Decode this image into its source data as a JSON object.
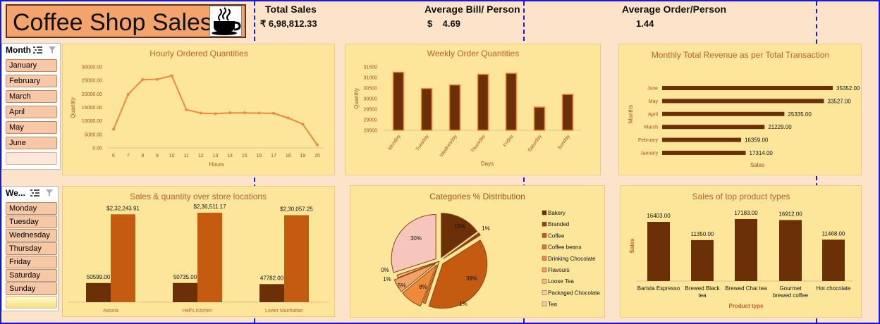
{
  "header": {
    "title": "Coffee Shop Sales",
    "kpis": [
      {
        "label": "Total Sales",
        "value": "₹ 6,98,812.33"
      },
      {
        "label": "Average Bill/ Person",
        "value": "$    4.69"
      },
      {
        "label": "Average Order/Person",
        "value": "1.44"
      }
    ]
  },
  "slicers": {
    "month": {
      "header": "Month",
      "items": [
        "January",
        "February",
        "March",
        "April",
        "May",
        "June"
      ]
    },
    "weekday": {
      "header": "We...",
      "items": [
        "Monday",
        "Tuesday",
        "Wednesday",
        "Thursday",
        "Friday",
        "Saturday",
        "Sunday"
      ]
    }
  },
  "chart_data": [
    {
      "id": "hourly",
      "type": "line",
      "title": "Hourly Ordered Quantities",
      "xlabel": "Hours",
      "ylabel": "Quantity",
      "x": [
        "6",
        "7",
        "8",
        "9",
        "10",
        "11",
        "12",
        "13",
        "14",
        "15",
        "16",
        "17",
        "18",
        "19",
        "20"
      ],
      "values": [
        6900,
        19800,
        25300,
        25400,
        26700,
        14200,
        12900,
        12700,
        13000,
        13000,
        12900,
        12800,
        11100,
        8800,
        1100
      ],
      "yticks": [
        "0.00",
        "5000.00",
        "10000.00",
        "15000.00",
        "20000.00",
        "25000.00",
        "30000.00"
      ],
      "ylim": [
        0,
        30000
      ],
      "color": "#ee8a3c"
    },
    {
      "id": "weekly",
      "type": "bar",
      "title": "Weekly Order Quantities",
      "xlabel": "Days",
      "ylabel": "Quantity",
      "categories": [
        "Monday",
        "Tuesday",
        "Wednesday",
        "Thursday",
        "Friday",
        "Saturday",
        "Sunday"
      ],
      "values": [
        31250,
        30480,
        30650,
        31150,
        31200,
        29600,
        30200
      ],
      "yticks": [
        "28500",
        "29000",
        "29500",
        "30000",
        "30500",
        "31000",
        "31500"
      ],
      "ylim": [
        28500,
        31500
      ],
      "color": "#6b3008"
    },
    {
      "id": "monthly",
      "type": "bar",
      "orientation": "horizontal",
      "title": "Monthly Total Revenue as per Total Transaction",
      "xlabel": "Sales",
      "ylabel": "Months",
      "categories": [
        "January",
        "February",
        "March",
        "April",
        "May",
        "June"
      ],
      "values": [
        17314.0,
        16359.0,
        21229.0,
        25335.0,
        33527.0,
        35352.0
      ],
      "labels": [
        "17314.00",
        "16359.00",
        "21229.00",
        "25335.00",
        "33527.00",
        "35352.00"
      ],
      "color": "#6b3008"
    },
    {
      "id": "stores",
      "type": "bar",
      "title": "Sales & quantity over store locations",
      "categories": [
        "Astoria",
        "Hell's Kitchen",
        "Lower Manhattan"
      ],
      "series": [
        {
          "values": [
            50599.0,
            50735.0,
            47782.0
          ],
          "labels": [
            "50599.00",
            "50735.00",
            "47782.00"
          ],
          "color": "#6b3008"
        },
        {
          "values": [
            232243.91,
            236511.17,
            230057.25
          ],
          "labels": [
            "$2,32,243.91",
            "$2,36,511.17",
            "$2,30,057.25"
          ],
          "color": "#c55a11"
        }
      ]
    },
    {
      "id": "categories",
      "type": "pie",
      "title": "Categories % Distribution",
      "categories": [
        "Bakery",
        "Branded",
        "Coffee",
        "Coffee beans",
        "Drinking Chocolate",
        "Flavours",
        "Loose Tea",
        "Packaged Chocolate",
        "Tea"
      ],
      "values": [
        15,
        1,
        39,
        1,
        8,
        5,
        1,
        0,
        30
      ],
      "labels": [
        "15%",
        "1%",
        "39%",
        "1%",
        "8%",
        "5%",
        "1%",
        "0%",
        "30%"
      ],
      "colors": [
        "#6b3008",
        "#8b4513",
        "#c55a11",
        "#d9772f",
        "#ee8a3c",
        "#f2a36a",
        "#f6b98a",
        "#f8cdb0",
        "#f6c6bc"
      ]
    },
    {
      "id": "products",
      "type": "bar",
      "title": "Sales of top product types",
      "xlabel": "Product type",
      "ylabel": "Sales",
      "categories": [
        "Barista Espresso",
        "Brewed Black tea",
        "Brewed Chai tea",
        "Gourmet brewed coffee",
        "Hot chocolate"
      ],
      "values": [
        16403.0,
        11350.0,
        17183.0,
        16912.0,
        11468.0
      ],
      "labels": [
        "16403.00",
        "11350.00",
        "17183.00",
        "16912.00",
        "11468.00"
      ],
      "color": "#6b3008"
    }
  ]
}
